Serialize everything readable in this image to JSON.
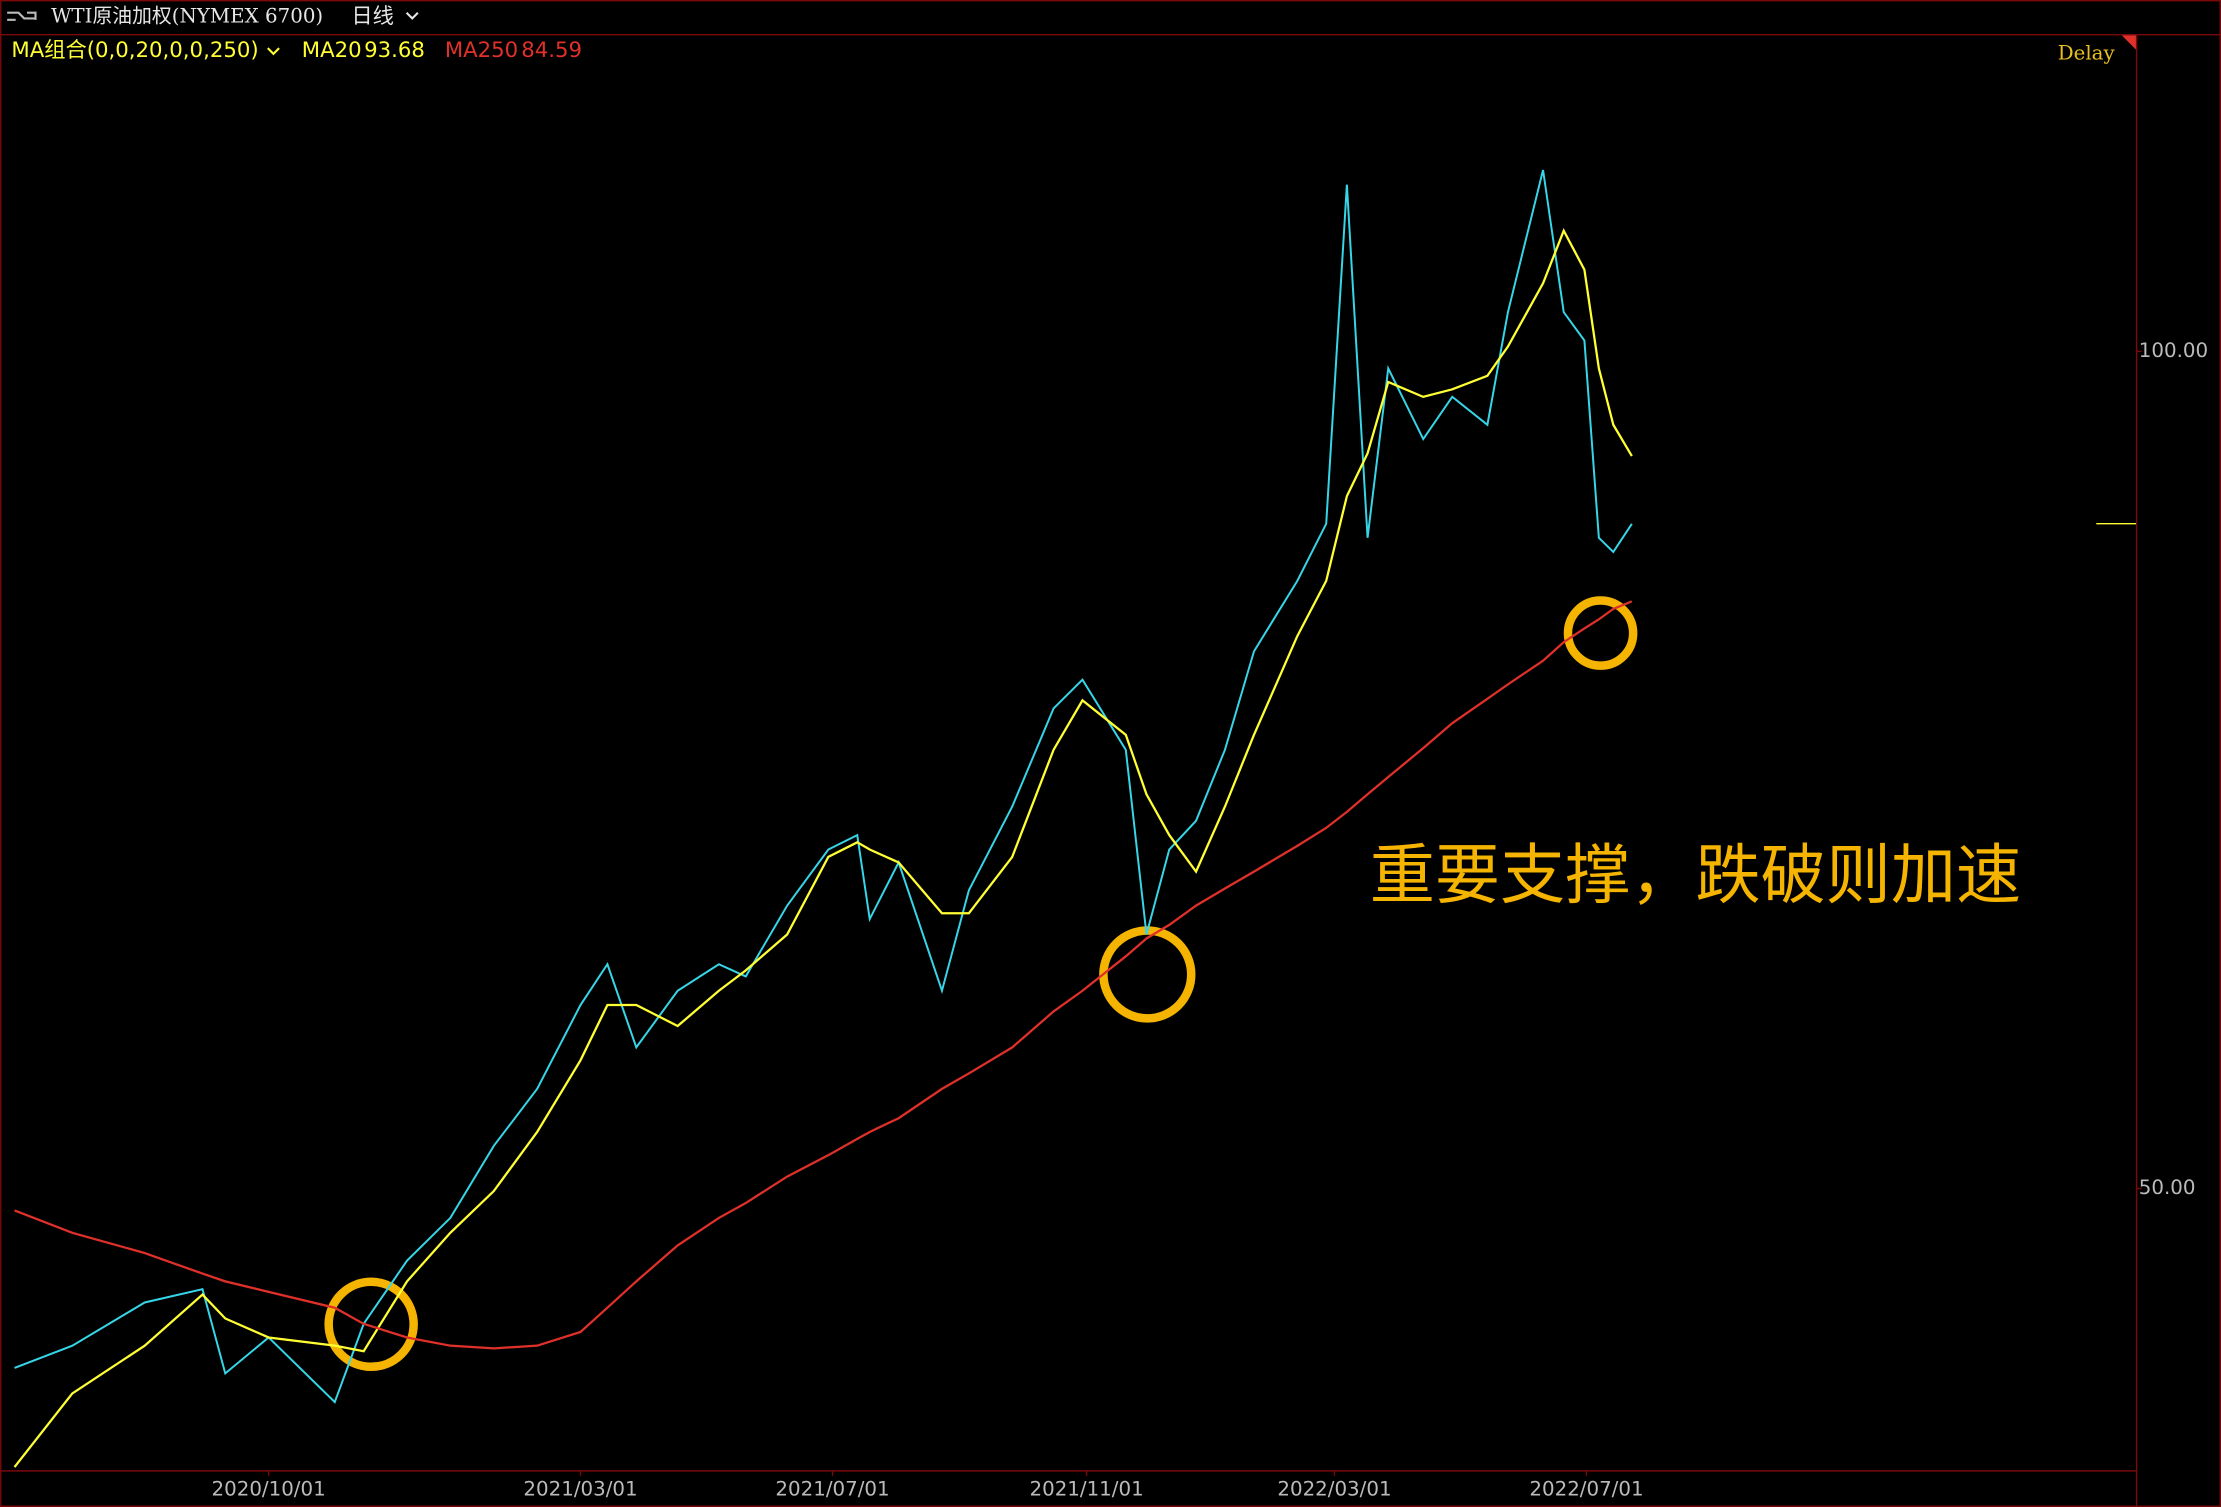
{
  "header": {
    "title": "WTI原油加权(NYMEX 6700)",
    "period": "日线",
    "indicator": "MA组合(0,0,20,0,0,250)",
    "status": "Delay"
  },
  "chart_data": {
    "type": "line",
    "log_scale": true,
    "x": [
      "2020/05/31",
      "2020/06/28",
      "2020/08/02",
      "2020/08/30",
      "2020/09/10",
      "2020/10/01",
      "2020/11/02",
      "2020/11/16",
      "2020/12/07",
      "2020/12/28",
      "2021/01/18",
      "2021/02/08",
      "2021/03/01",
      "2021/03/14",
      "2021/03/28",
      "2021/04/17",
      "2021/05/07",
      "2021/05/20",
      "2021/06/09",
      "2021/06/29",
      "2021/07/13",
      "2021/07/19",
      "2021/08/02",
      "2021/08/23",
      "2021/09/05",
      "2021/09/26",
      "2021/10/16",
      "2021/10/30",
      "2021/11/20",
      "2021/11/30",
      "2021/12/11",
      "2021/12/24",
      "2022/01/07",
      "2022/01/21",
      "2022/02/11",
      "2022/02/25",
      "2022/03/07",
      "2022/03/17",
      "2022/03/27",
      "2022/04/13",
      "2022/04/27",
      "2022/05/14",
      "2022/05/24",
      "2022/06/10",
      "2022/06/20",
      "2022/06/30",
      "2022/07/07",
      "2022/07/14",
      "2022/07/23"
    ],
    "series": [
      {
        "color": "#36d6e8",
        "values": [
          43.1,
          43.9,
          45.5,
          46.0,
          42.9,
          44.2,
          41.9,
          44.7,
          47.1,
          48.8,
          51.8,
          54.3,
          58.2,
          60.2,
          56.2,
          58.9,
          60.2,
          59.6,
          63.2,
          66.2,
          67.0,
          62.5,
          65.5,
          58.9,
          64.0,
          68.6,
          74.4,
          76.2,
          71.9,
          61.7,
          66.2,
          67.8,
          71.9,
          78.0,
          82.7,
          86.7,
          114.8,
          85.7,
          98.6,
          93.0,
          96.3,
          94.1,
          103.3,
          116.2,
          103.3,
          100.9,
          85.7,
          84.7,
          86.7
        ]
      },
      {
        "name": "MA20",
        "legend_value": 93.68,
        "color": "#ffff33",
        "values": [
          39.7,
          42.2,
          43.9,
          45.8,
          44.9,
          44.2,
          43.9,
          43.7,
          46.3,
          48.2,
          49.9,
          52.4,
          55.6,
          58.2,
          58.2,
          57.2,
          58.9,
          59.9,
          61.7,
          65.8,
          66.6,
          66.2,
          65.5,
          62.8,
          62.8,
          65.8,
          71.9,
          74.9,
          72.8,
          69.3,
          67.0,
          65.0,
          68.6,
          72.8,
          79.0,
          82.7,
          88.7,
          91.9,
          97.5,
          96.3,
          96.9,
          98.0,
          100.4,
          105.8,
          110.5,
          107.0,
          98.6,
          94.1,
          91.7
        ]
      },
      {
        "name": "MA250",
        "legend_value": 84.59,
        "color": "#e0302a",
        "values": [
          49.1,
          48.2,
          47.4,
          46.6,
          46.3,
          45.9,
          45.3,
          44.7,
          44.2,
          43.9,
          43.8,
          43.9,
          44.4,
          45.3,
          46.3,
          47.7,
          48.8,
          49.4,
          50.5,
          51.4,
          52.1,
          52.4,
          53.0,
          54.3,
          55.0,
          56.2,
          57.9,
          58.9,
          60.6,
          61.5,
          62.2,
          63.2,
          64.1,
          65.0,
          66.4,
          67.4,
          68.3,
          69.3,
          70.3,
          72.0,
          73.5,
          75.0,
          75.9,
          77.4,
          78.6,
          79.5,
          80.1,
          80.8,
          81.3
        ]
      }
    ],
    "xlim": [
      "2020/05/24",
      "2023/03/24"
    ],
    "xticks": [
      "2020/10/01",
      "2021/03/01",
      "2021/07/01",
      "2021/11/01",
      "2022/03/01",
      "2022/07/01"
    ],
    "ylim": [
      39.6,
      129.9
    ],
    "yticks": [
      {
        "value": 50,
        "label": "50.00"
      },
      {
        "value": 100,
        "label": "100.00"
      }
    ],
    "annotations": [
      "重要支撑，跌破则加速"
    ]
  }
}
